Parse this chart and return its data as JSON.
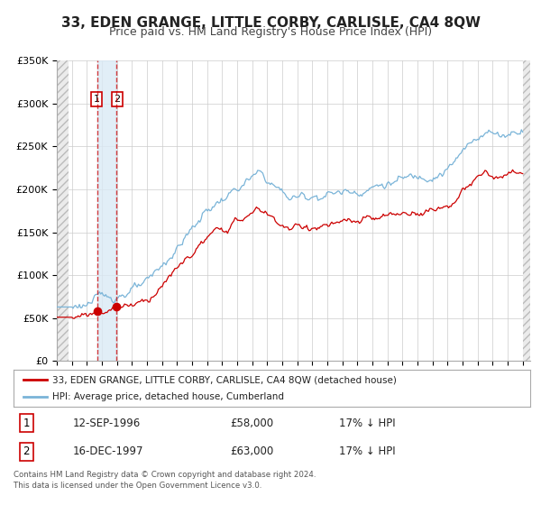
{
  "title": "33, EDEN GRANGE, LITTLE CORBY, CARLISLE, CA4 8QW",
  "subtitle": "Price paid vs. HM Land Registry's House Price Index (HPI)",
  "ylim": [
    0,
    350000
  ],
  "yticks": [
    0,
    50000,
    100000,
    150000,
    200000,
    250000,
    300000,
    350000
  ],
  "ytick_labels": [
    "£0",
    "£50K",
    "£100K",
    "£150K",
    "£200K",
    "£250K",
    "£300K",
    "£350K"
  ],
  "xlim_start": 1994.0,
  "xlim_end": 2025.5,
  "hpi_color": "#7ab4d8",
  "price_color": "#cc0000",
  "sale1_date": 1996.71,
  "sale1_price": 58000,
  "sale2_date": 1997.96,
  "sale2_price": 63000,
  "vline1_x": 1996.71,
  "vline2_x": 1997.96,
  "legend_text1": "33, EDEN GRANGE, LITTLE CORBY, CARLISLE, CA4 8QW (detached house)",
  "legend_text2": "HPI: Average price, detached house, Cumberland",
  "table_row1": [
    "1",
    "12-SEP-1996",
    "£58,000",
    "17% ↓ HPI"
  ],
  "table_row2": [
    "2",
    "16-DEC-1997",
    "£63,000",
    "17% ↓ HPI"
  ],
  "footnote": "Contains HM Land Registry data © Crown copyright and database right 2024.\nThis data is licensed under the Open Government Licence v3.0.",
  "background_color": "#ffffff",
  "plot_bg_color": "#ffffff",
  "grid_color": "#cccccc",
  "title_fontsize": 11,
  "subtitle_fontsize": 9
}
